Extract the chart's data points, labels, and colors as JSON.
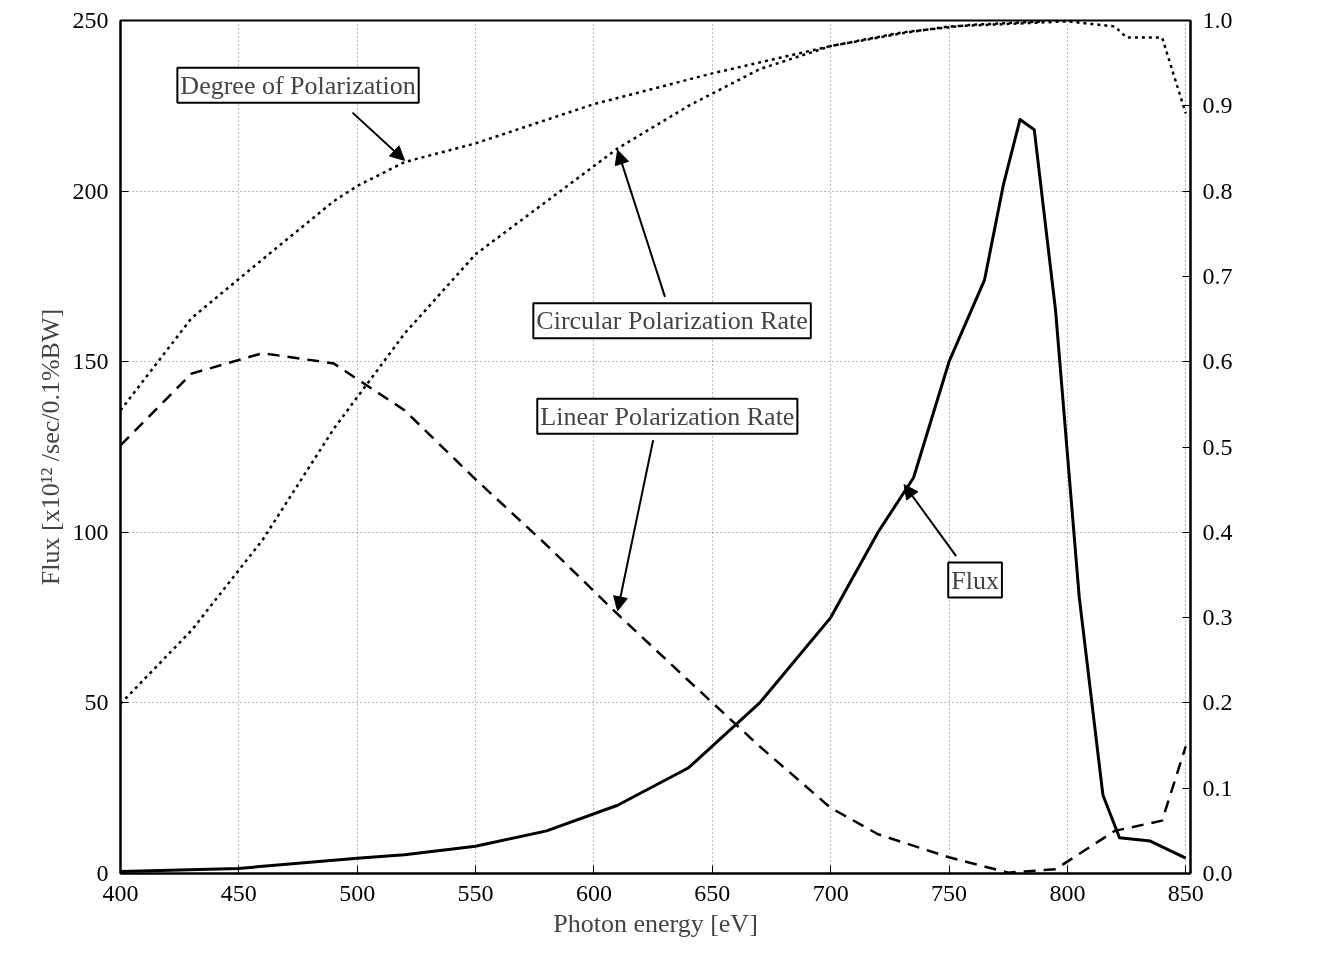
{
  "chart_data": {
    "type": "line",
    "xlabel": "Photon energy [eV]",
    "ylabel": "Flux [x10¹² /sec/0.1%BW]",
    "xlim": [
      400,
      852
    ],
    "xticks": [
      400,
      450,
      500,
      550,
      600,
      650,
      700,
      750,
      800,
      850
    ],
    "ylim": [
      0,
      250
    ],
    "yticks": [
      0,
      50,
      100,
      150,
      200,
      250
    ],
    "y2lim": [
      0,
      1
    ],
    "y2ticks": [
      {
        "value": 0,
        "label": "0.0"
      },
      0.1,
      0.2,
      0.3,
      0.4,
      0.5,
      0.6,
      0.7,
      0.8,
      0.9,
      {
        "value": 1,
        "label": "1.0"
      }
    ],
    "grid": true,
    "series": [
      {
        "color": "#000000",
        "line_style": "solid",
        "x": [
          400,
          450,
          500,
          520,
          550,
          580,
          610,
          640,
          670,
          700,
          720,
          735,
          750,
          765,
          773,
          780,
          786,
          795,
          805,
          815,
          822,
          835,
          850
        ],
        "values": [
          0.6,
          1.5,
          4.5,
          5.5,
          8,
          12.5,
          20,
          31,
          50,
          75,
          100,
          116,
          150,
          174,
          202,
          221,
          218,
          165,
          81,
          23,
          10.5,
          9.5,
          4.5
        ]
      },
      {
        "color": "#000000",
        "line_style": "dotted",
        "axis": "y2",
        "x": [
          400,
          430,
          460,
          490,
          500,
          520,
          550,
          600,
          650,
          700,
          730,
          750,
          800,
          820,
          825,
          840,
          850
        ],
        "values": [
          0.543,
          0.651,
          0.72,
          0.788,
          0.806,
          0.834,
          0.856,
          0.902,
          0.938,
          0.97,
          0.985,
          0.993,
          0.999,
          0.993,
          0.98,
          0.98,
          0.891
        ]
      },
      {
        "color": "#000000",
        "line_style": "dotted",
        "axis": "y2",
        "x": [
          400,
          430,
          460,
          490,
          520,
          550,
          580,
          610,
          640,
          670,
          700,
          730,
          760,
          790
        ],
        "values": [
          0.199,
          0.285,
          0.391,
          0.521,
          0.633,
          0.726,
          0.788,
          0.85,
          0.9,
          0.943,
          0.97,
          0.986,
          0.995,
          0.999
        ]
      },
      {
        "color": "#000000",
        "line_style": "dashed",
        "axis": "y2",
        "x": [
          400,
          430,
          460,
          490,
          520,
          550,
          580,
          610,
          640,
          670,
          700,
          720,
          750,
          775,
          795,
          820,
          840,
          850
        ],
        "values": [
          0.502,
          0.586,
          0.61,
          0.598,
          0.543,
          0.462,
          0.385,
          0.304,
          0.226,
          0.149,
          0.077,
          0.046,
          0.019,
          0.001,
          0.005,
          0.05,
          0.062,
          0.149
        ]
      }
    ],
    "annotations": [
      {
        "text": "Degree of Polarization",
        "x": 520,
        "y": 209
      },
      {
        "text": "Circular Polarization Rate",
        "x": 610,
        "y": 212
      },
      {
        "text": "Linear Polarization Rate",
        "x": 610,
        "y": 77
      },
      {
        "text": "Flux",
        "x": 731,
        "y": 114
      }
    ]
  }
}
